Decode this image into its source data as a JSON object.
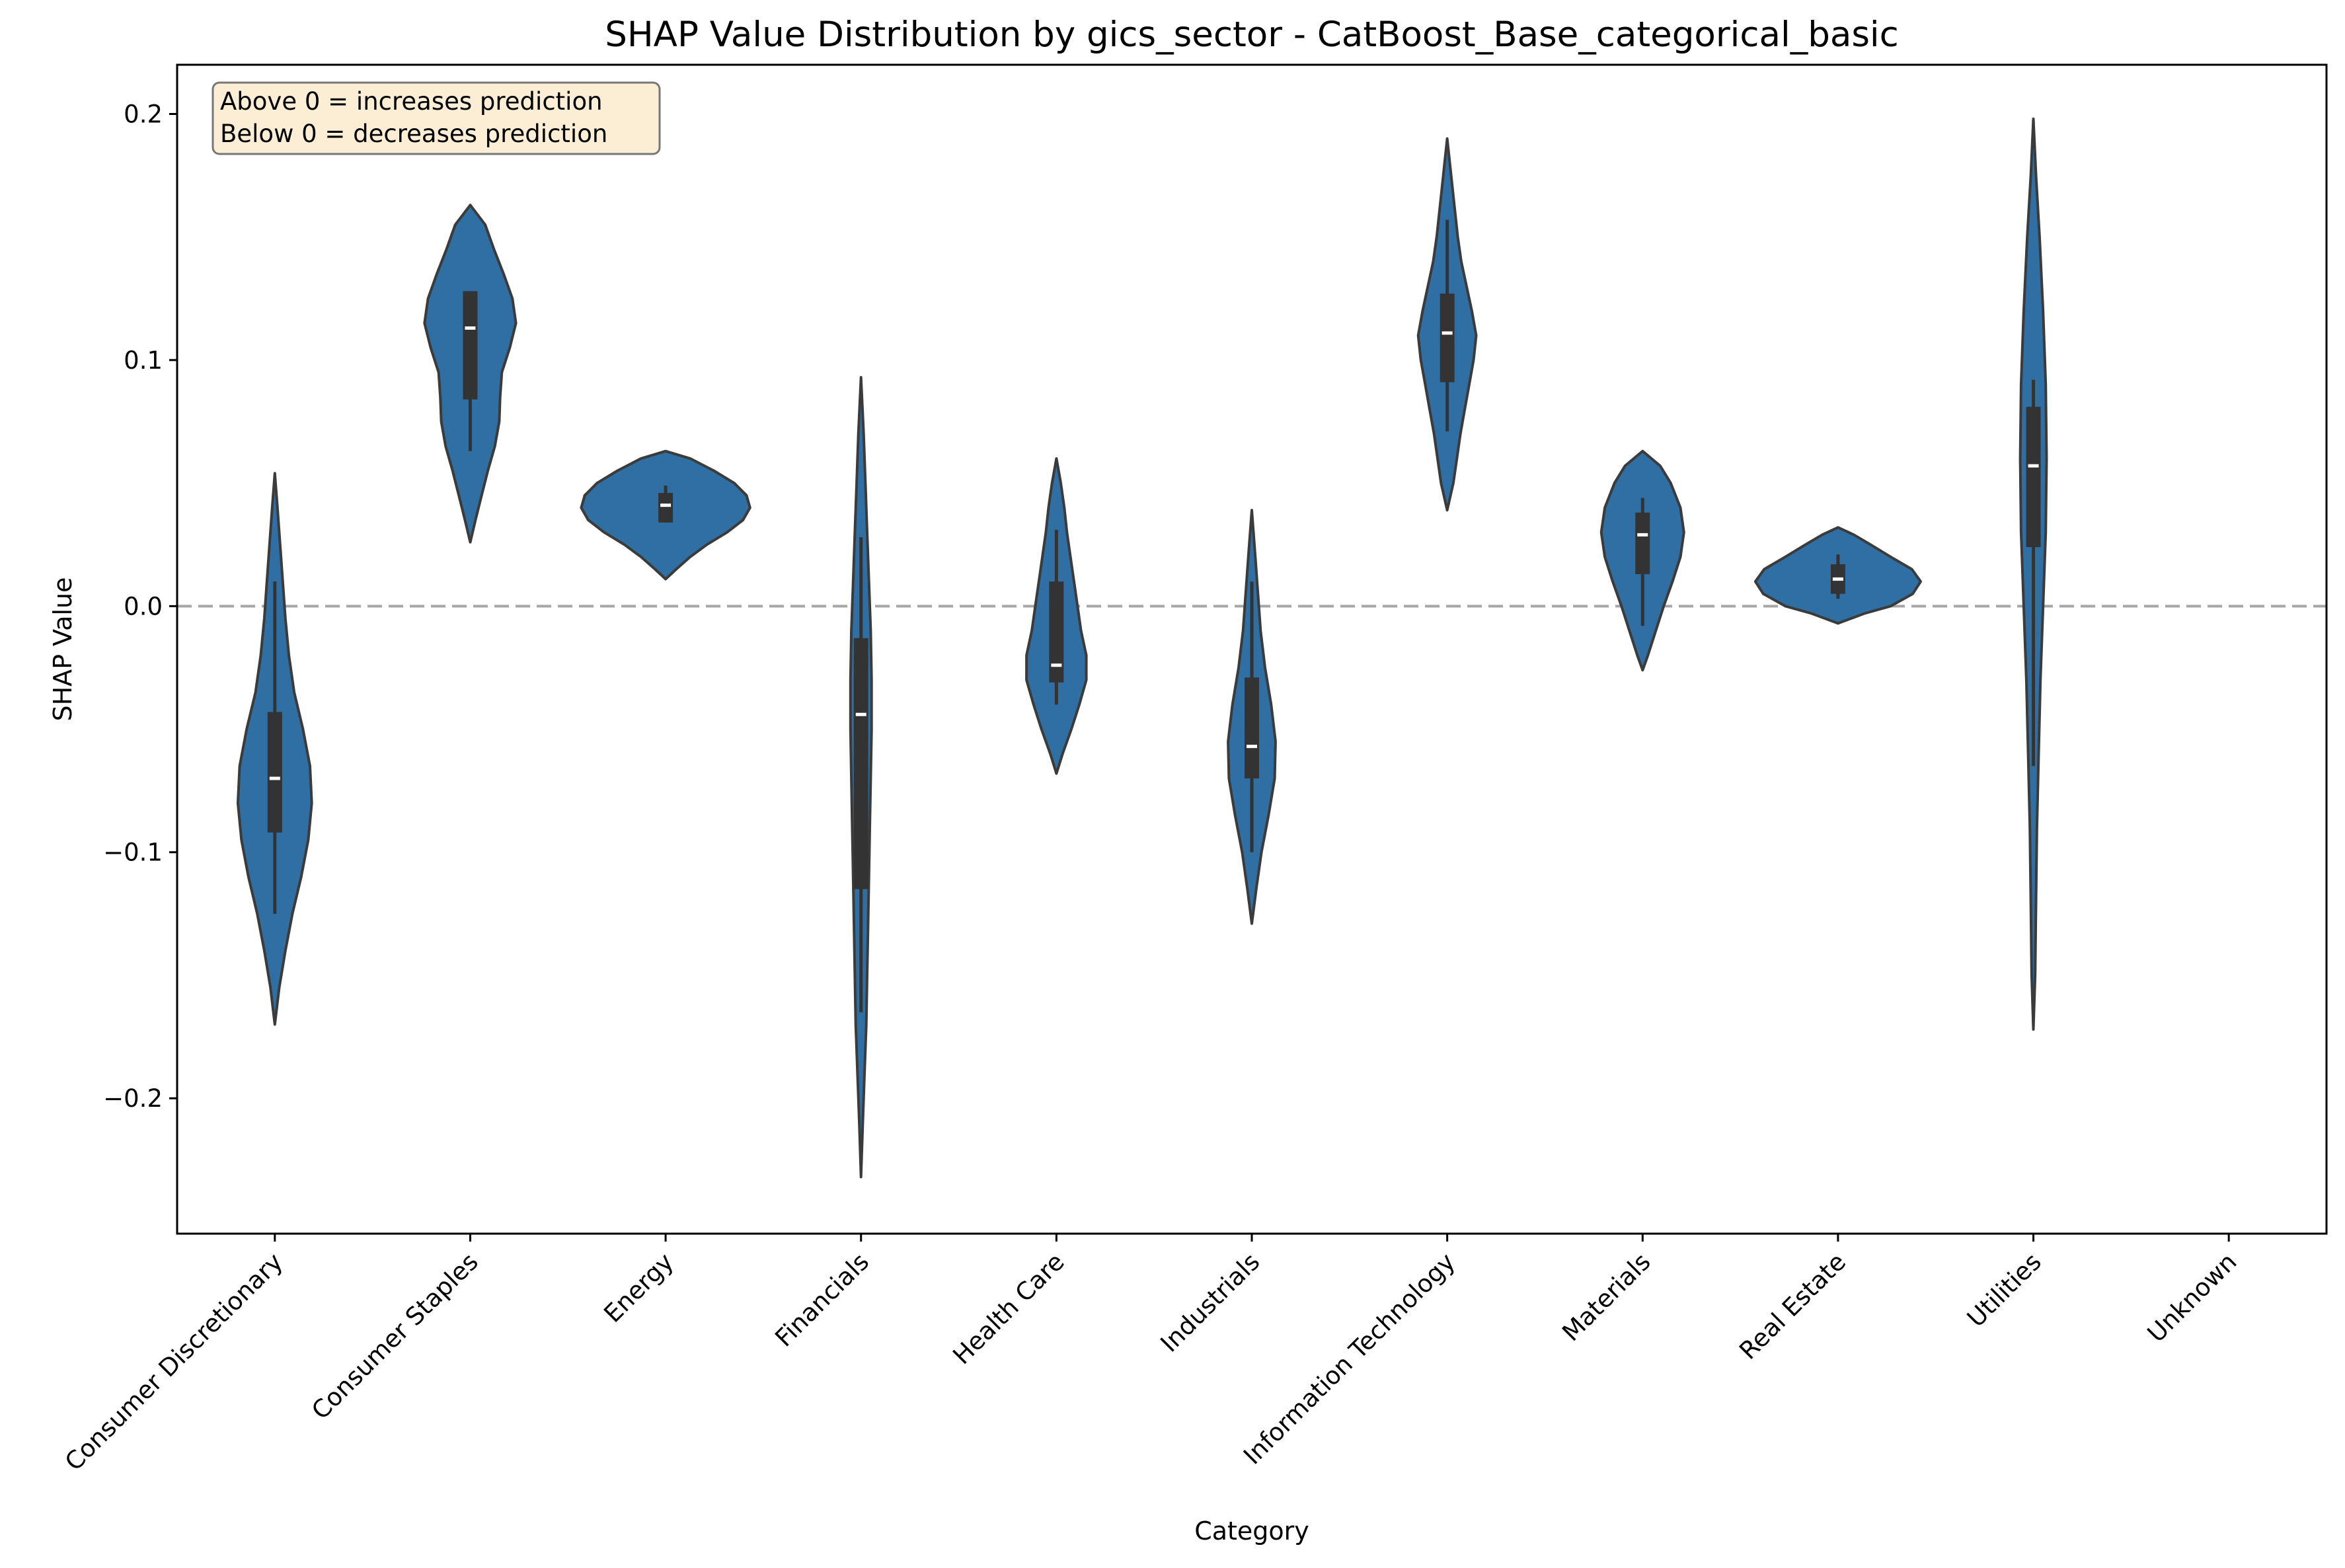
{
  "chart_data": {
    "type": "violin",
    "title": "SHAP Value Distribution by gics_sector - CatBoost_Base_categorical_basic",
    "xlabel": "Category",
    "ylabel": "SHAP Value",
    "ylim": [
      -0.255,
      0.22
    ],
    "yticks": [
      -0.2,
      -0.1,
      0.0,
      0.1,
      0.2
    ],
    "ytick_labels": [
      "−0.2",
      "−0.1",
      "0.0",
      "0.1",
      "0.2"
    ],
    "reference_line": {
      "y": 0.0,
      "style": "dashed",
      "color": "#a6a6a6"
    },
    "annotation": [
      "Above 0 = increases prediction",
      "Below 0 = decreases prediction"
    ],
    "colors": {
      "violin_fill": "#2f6fa3",
      "violin_edge": "#3b3b3b",
      "box": "#333333",
      "median": "#ffffff",
      "annotation_bg": "#fbeed5"
    },
    "grid": false,
    "categories": [
      "Consumer Discretionary",
      "Consumer Staples",
      "Energy",
      "Financials",
      "Health Care",
      "Industrials",
      "Information Technology",
      "Materials",
      "Real Estate",
      "Utilities",
      "Unknown"
    ],
    "violins": [
      {
        "category": "Consumer Discretionary",
        "min": -0.17,
        "q1": -0.092,
        "median": -0.07,
        "q3": -0.043,
        "max": 0.054,
        "whisker_low": -0.125,
        "whisker_high": 0.01,
        "profile": [
          [
            -0.17,
            0.0
          ],
          [
            -0.155,
            0.005
          ],
          [
            -0.14,
            0.012
          ],
          [
            -0.125,
            0.02
          ],
          [
            -0.11,
            0.03
          ],
          [
            -0.095,
            0.038
          ],
          [
            -0.08,
            0.042
          ],
          [
            -0.065,
            0.04
          ],
          [
            -0.05,
            0.032
          ],
          [
            -0.035,
            0.022
          ],
          [
            -0.02,
            0.016
          ],
          [
            -0.005,
            0.012
          ],
          [
            0.01,
            0.009
          ],
          [
            0.025,
            0.006
          ],
          [
            0.04,
            0.003
          ],
          [
            0.054,
            0.0
          ]
        ]
      },
      {
        "category": "Consumer Staples",
        "min": 0.026,
        "q1": 0.084,
        "median": 0.113,
        "q3": 0.128,
        "max": 0.163,
        "whisker_low": 0.063,
        "whisker_high": 0.128,
        "profile": [
          [
            0.026,
            0.0
          ],
          [
            0.035,
            0.006
          ],
          [
            0.045,
            0.013
          ],
          [
            0.055,
            0.02
          ],
          [
            0.065,
            0.028
          ],
          [
            0.075,
            0.033
          ],
          [
            0.085,
            0.034
          ],
          [
            0.095,
            0.036
          ],
          [
            0.105,
            0.045
          ],
          [
            0.115,
            0.052
          ],
          [
            0.125,
            0.048
          ],
          [
            0.135,
            0.038
          ],
          [
            0.145,
            0.027
          ],
          [
            0.155,
            0.017
          ],
          [
            0.163,
            0.0
          ]
        ]
      },
      {
        "category": "Energy",
        "min": 0.011,
        "q1": 0.034,
        "median": 0.041,
        "q3": 0.046,
        "max": 0.063,
        "whisker_low": 0.034,
        "whisker_high": 0.049,
        "profile": [
          [
            0.011,
            0.0
          ],
          [
            0.015,
            0.012
          ],
          [
            0.02,
            0.028
          ],
          [
            0.025,
            0.047
          ],
          [
            0.03,
            0.07
          ],
          [
            0.035,
            0.088
          ],
          [
            0.04,
            0.096
          ],
          [
            0.045,
            0.092
          ],
          [
            0.05,
            0.078
          ],
          [
            0.055,
            0.055
          ],
          [
            0.06,
            0.028
          ],
          [
            0.063,
            0.0
          ]
        ]
      },
      {
        "category": "Financials",
        "min": -0.232,
        "q1": -0.115,
        "median": -0.044,
        "q3": -0.013,
        "max": 0.093,
        "whisker_low": -0.165,
        "whisker_high": 0.028,
        "profile": [
          [
            -0.232,
            0.0
          ],
          [
            -0.21,
            0.002
          ],
          [
            -0.19,
            0.004
          ],
          [
            -0.17,
            0.006
          ],
          [
            -0.15,
            0.007
          ],
          [
            -0.13,
            0.008
          ],
          [
            -0.11,
            0.009
          ],
          [
            -0.09,
            0.01
          ],
          [
            -0.07,
            0.011
          ],
          [
            -0.05,
            0.012
          ],
          [
            -0.03,
            0.012
          ],
          [
            -0.01,
            0.011
          ],
          [
            0.01,
            0.009
          ],
          [
            0.03,
            0.007
          ],
          [
            0.05,
            0.005
          ],
          [
            0.07,
            0.003
          ],
          [
            0.093,
            0.0
          ]
        ]
      },
      {
        "category": "Health Care",
        "min": -0.068,
        "q1": -0.031,
        "median": -0.024,
        "q3": 0.01,
        "max": 0.06,
        "whisker_low": -0.04,
        "whisker_high": 0.031,
        "profile": [
          [
            -0.068,
            0.0
          ],
          [
            -0.06,
            0.007
          ],
          [
            -0.05,
            0.017
          ],
          [
            -0.04,
            0.026
          ],
          [
            -0.03,
            0.034
          ],
          [
            -0.02,
            0.034
          ],
          [
            -0.01,
            0.028
          ],
          [
            0.0,
            0.024
          ],
          [
            0.01,
            0.02
          ],
          [
            0.02,
            0.016
          ],
          [
            0.03,
            0.012
          ],
          [
            0.04,
            0.009
          ],
          [
            0.05,
            0.005
          ],
          [
            0.06,
            0.0
          ]
        ]
      },
      {
        "category": "Industrials",
        "min": -0.129,
        "q1": -0.07,
        "median": -0.057,
        "q3": -0.029,
        "max": 0.039,
        "whisker_low": -0.1,
        "whisker_high": 0.01,
        "profile": [
          [
            -0.129,
            0.0
          ],
          [
            -0.115,
            0.005
          ],
          [
            -0.1,
            0.011
          ],
          [
            -0.085,
            0.019
          ],
          [
            -0.07,
            0.026
          ],
          [
            -0.055,
            0.027
          ],
          [
            -0.04,
            0.022
          ],
          [
            -0.025,
            0.015
          ],
          [
            -0.01,
            0.01
          ],
          [
            0.005,
            0.007
          ],
          [
            0.02,
            0.004
          ],
          [
            0.039,
            0.0
          ]
        ]
      },
      {
        "category": "Information Technology",
        "min": 0.039,
        "q1": 0.091,
        "median": 0.111,
        "q3": 0.127,
        "max": 0.19,
        "whisker_low": 0.071,
        "whisker_high": 0.157,
        "profile": [
          [
            0.039,
            0.0
          ],
          [
            0.05,
            0.007
          ],
          [
            0.06,
            0.011
          ],
          [
            0.07,
            0.015
          ],
          [
            0.08,
            0.02
          ],
          [
            0.09,
            0.025
          ],
          [
            0.1,
            0.03
          ],
          [
            0.11,
            0.033
          ],
          [
            0.12,
            0.028
          ],
          [
            0.13,
            0.022
          ],
          [
            0.14,
            0.016
          ],
          [
            0.15,
            0.012
          ],
          [
            0.16,
            0.009
          ],
          [
            0.17,
            0.006
          ],
          [
            0.18,
            0.003
          ],
          [
            0.19,
            0.0
          ]
        ]
      },
      {
        "category": "Materials",
        "min": -0.026,
        "q1": 0.013,
        "median": 0.029,
        "q3": 0.038,
        "max": 0.063,
        "whisker_low": -0.008,
        "whisker_high": 0.044,
        "profile": [
          [
            -0.026,
            0.0
          ],
          [
            -0.02,
            0.006
          ],
          [
            -0.01,
            0.015
          ],
          [
            0.0,
            0.024
          ],
          [
            0.01,
            0.034
          ],
          [
            0.02,
            0.043
          ],
          [
            0.03,
            0.047
          ],
          [
            0.04,
            0.043
          ],
          [
            0.05,
            0.032
          ],
          [
            0.057,
            0.02
          ],
          [
            0.063,
            0.0
          ]
        ]
      },
      {
        "category": "Real Estate",
        "min": -0.007,
        "q1": 0.005,
        "median": 0.011,
        "q3": 0.017,
        "max": 0.032,
        "whisker_low": 0.003,
        "whisker_high": 0.021,
        "profile": [
          [
            -0.007,
            0.0
          ],
          [
            -0.003,
            0.03
          ],
          [
            0.0,
            0.06
          ],
          [
            0.005,
            0.085
          ],
          [
            0.01,
            0.094
          ],
          [
            0.015,
            0.084
          ],
          [
            0.02,
            0.06
          ],
          [
            0.025,
            0.037
          ],
          [
            0.029,
            0.018
          ],
          [
            0.032,
            0.0
          ]
        ]
      },
      {
        "category": "Utilities",
        "min": -0.172,
        "q1": 0.024,
        "median": 0.057,
        "q3": 0.081,
        "max": 0.198,
        "whisker_low": -0.065,
        "whisker_high": 0.092,
        "profile": [
          [
            -0.172,
            0.0
          ],
          [
            -0.15,
            0.002
          ],
          [
            -0.12,
            0.003
          ],
          [
            -0.09,
            0.004
          ],
          [
            -0.06,
            0.006
          ],
          [
            -0.03,
            0.008
          ],
          [
            0.0,
            0.011
          ],
          [
            0.03,
            0.014
          ],
          [
            0.06,
            0.015
          ],
          [
            0.09,
            0.014
          ],
          [
            0.12,
            0.011
          ],
          [
            0.15,
            0.007
          ],
          [
            0.175,
            0.003
          ],
          [
            0.198,
            0.0
          ]
        ]
      }
    ]
  }
}
